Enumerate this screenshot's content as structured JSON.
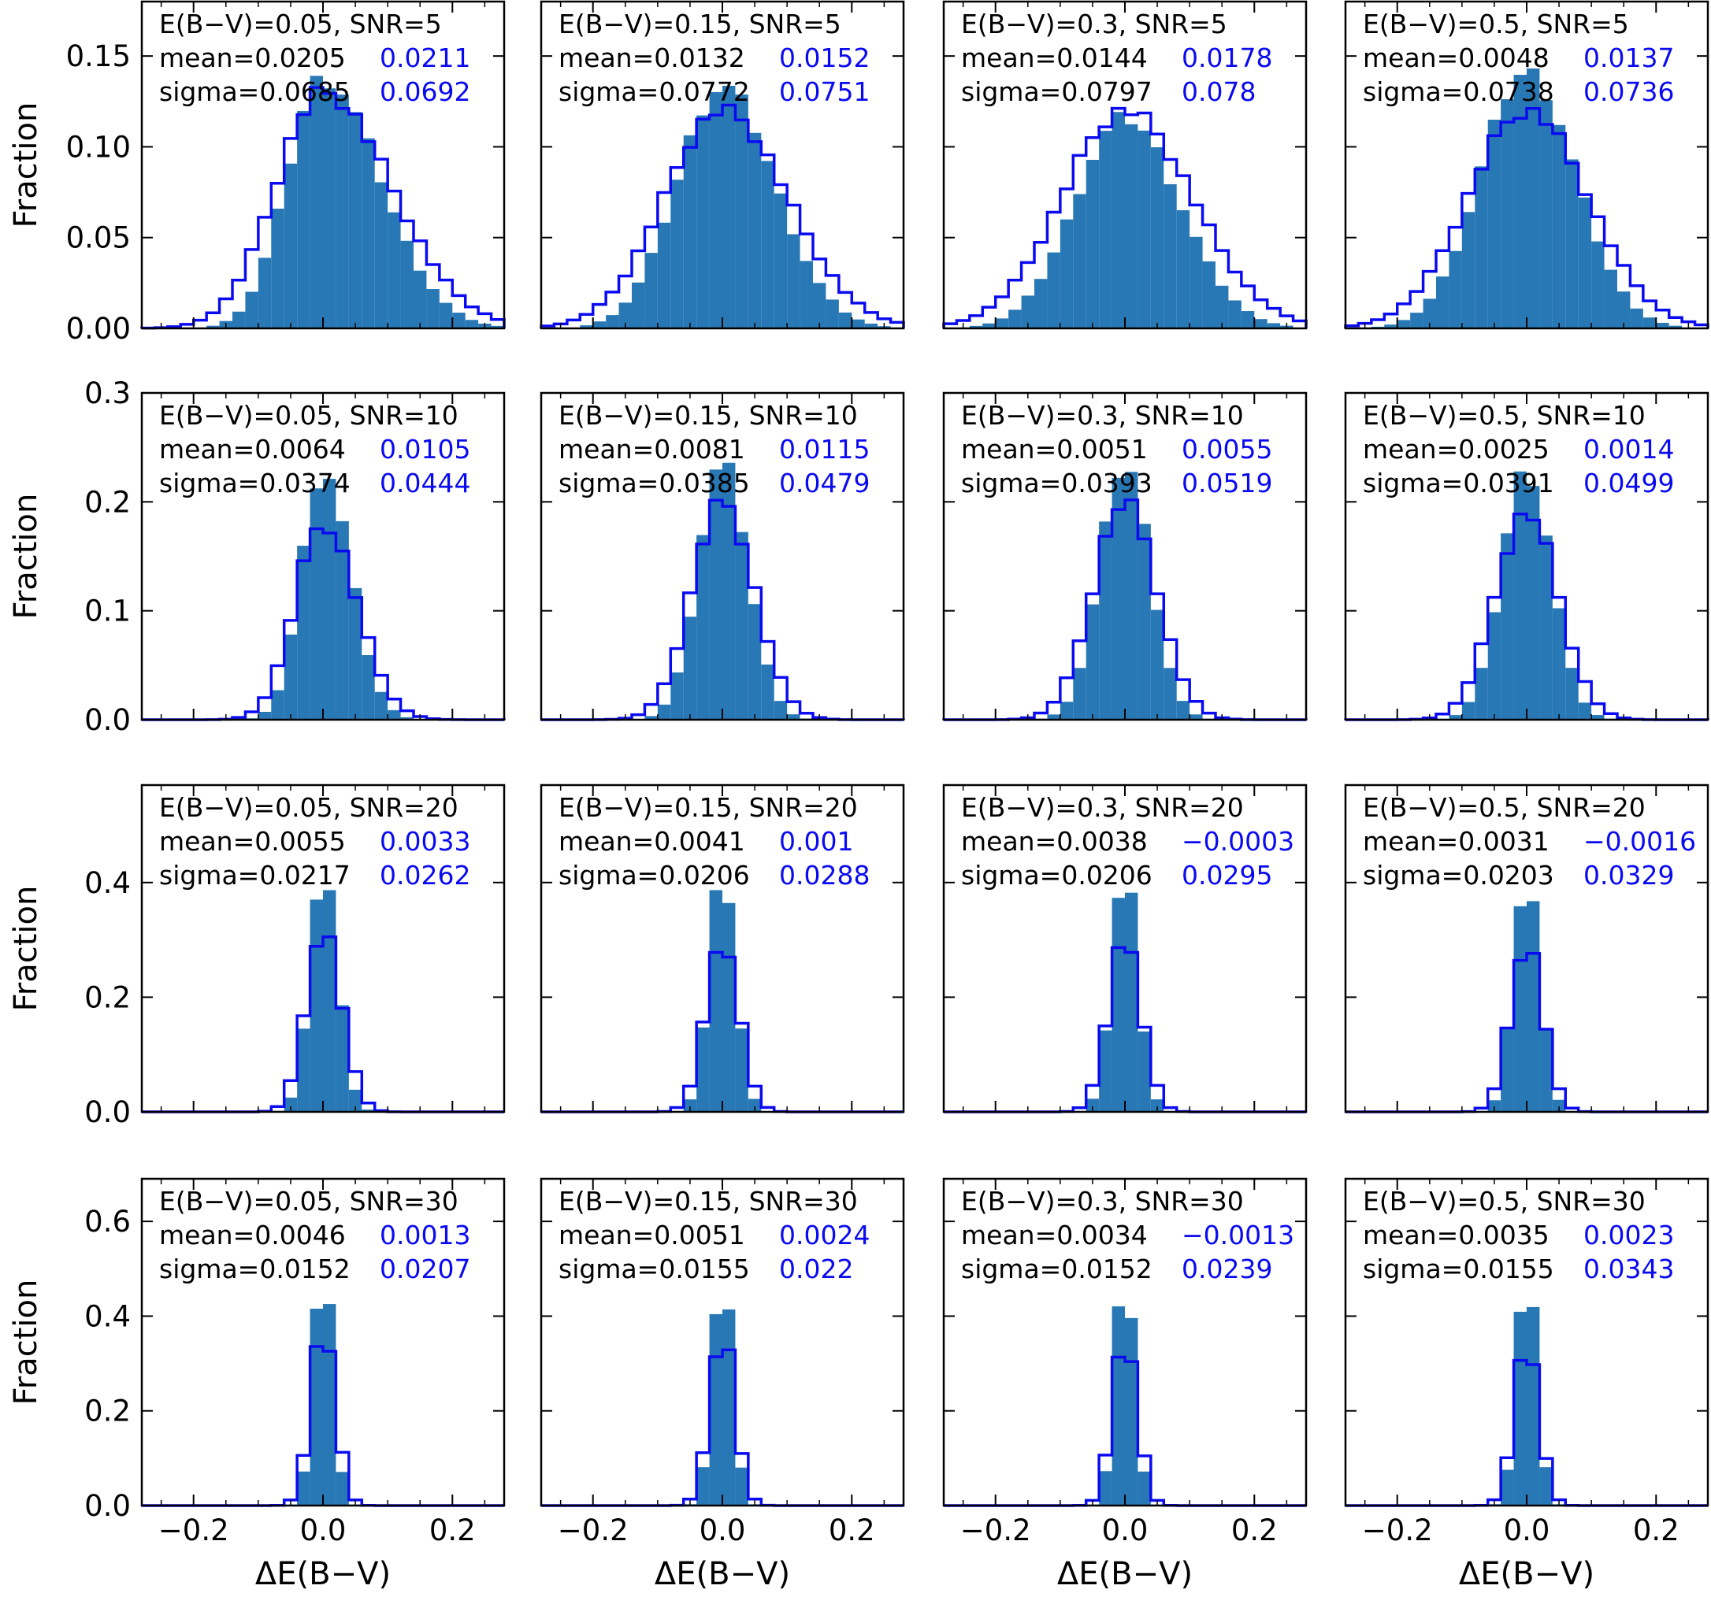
{
  "colors": {
    "filled": "#2878b5",
    "outline": "#0a0af0",
    "frame": "#000000"
  },
  "labels": {
    "xlabel": "ΔE(B−V)",
    "ylabel": "Fraction"
  },
  "xaxis": {
    "range": [
      -0.28,
      0.28
    ],
    "ticks": [
      -0.2,
      0.0,
      0.2
    ],
    "tick_labels": [
      "−0.2",
      "0.0",
      "0.2"
    ]
  },
  "rows": [
    {
      "snr_label": "SNR=5",
      "ylim": [
        0,
        0.18
      ],
      "yticks": [
        0,
        0.05,
        0.1,
        0.15
      ],
      "ytick_labels": [
        "0.00",
        "0.05",
        "0.10",
        "0.15"
      ]
    },
    {
      "snr_label": "SNR=10",
      "ylim": [
        0,
        0.3
      ],
      "yticks": [
        0,
        0.1,
        0.2,
        0.3
      ],
      "ytick_labels": [
        "0.0",
        "0.1",
        "0.2",
        "0.3"
      ]
    },
    {
      "snr_label": "SNR=20",
      "ylim": [
        0,
        0.57
      ],
      "yticks": [
        0,
        0.2,
        0.4
      ],
      "ytick_labels": [
        "0.0",
        "0.2",
        "0.4"
      ]
    },
    {
      "snr_label": "SNR=30",
      "ylim": [
        0,
        0.69
      ],
      "yticks": [
        0,
        0.2,
        0.4,
        0.6
      ],
      "ytick_labels": [
        "0.0",
        "0.2",
        "0.4",
        "0.6"
      ]
    }
  ],
  "chart_data": [
    {
      "type": "bar",
      "row": 0,
      "col": 0,
      "title": "E(B−V)=0.05,  SNR=5",
      "mean_label": "mean=0.0205",
      "mean_blue": "0.0211",
      "sigma_label": "sigma=0.0685",
      "sigma_blue": "0.0692",
      "width": 0.0682,
      "filled_scale": 0.138,
      "outline_scale": 0.13,
      "skew": 0.5
    },
    {
      "type": "bar",
      "row": 0,
      "col": 1,
      "title": "E(B−V)=0.15,  SNR=5",
      "mean_label": "mean=0.0132",
      "mean_blue": "0.0152",
      "sigma_label": "sigma=0.0772",
      "sigma_blue": "0.0751",
      "width": 0.075,
      "filled_scale": 0.133,
      "outline_scale": 0.12,
      "skew": 0.15
    },
    {
      "type": "bar",
      "row": 0,
      "col": 2,
      "title": "E(B−V)=0.3,  SNR=5",
      "mean_label": "mean=0.0144",
      "mean_blue": "0.0178",
      "sigma_label": "sigma=0.0797",
      "sigma_blue": "0.078",
      "width": 0.0798,
      "filled_scale": 0.116,
      "outline_scale": 0.12,
      "skew": 0.1
    },
    {
      "type": "bar",
      "row": 0,
      "col": 3,
      "title": "E(B−V)=0.5,  SNR=5",
      "mean_label": "mean=0.0048",
      "mean_blue": "0.0137",
      "sigma_label": "sigma=0.0738",
      "sigma_blue": "0.0736",
      "width": 0.0735,
      "filled_scale": 0.141,
      "outline_scale": 0.12,
      "skew": 0.05
    },
    {
      "type": "bar",
      "row": 1,
      "col": 0,
      "title": "E(B−V)=0.05,  SNR=10",
      "mean_label": "mean=0.0064",
      "mean_blue": "0.0105",
      "sigma_label": "sigma=0.0374",
      "sigma_blue": "0.0444",
      "width": 0.0373,
      "filled_scale": 0.23,
      "outline_scale": 0.18,
      "skew": 0.25
    },
    {
      "type": "bar",
      "row": 1,
      "col": 1,
      "title": "E(B−V)=0.15,  SNR=10",
      "mean_label": "mean=0.0081",
      "mean_blue": "0.0115",
      "sigma_label": "sigma=0.0385",
      "sigma_blue": "0.0479",
      "width": 0.0385,
      "filled_scale": 0.235,
      "outline_scale": 0.2,
      "skew": 0.05
    },
    {
      "type": "bar",
      "row": 1,
      "col": 2,
      "title": "E(B−V)=0.3,  SNR=10",
      "mean_label": "mean=0.0051",
      "mean_blue": "0.0055",
      "sigma_label": "sigma=0.0393",
      "sigma_blue": "0.0519",
      "width": 0.0393,
      "filled_scale": 0.235,
      "outline_scale": 0.2,
      "skew": 0.0
    },
    {
      "type": "bar",
      "row": 1,
      "col": 3,
      "title": "E(B−V)=0.5,  SNR=10",
      "mean_label": "mean=0.0025",
      "mean_blue": "0.0014",
      "sigma_label": "sigma=0.0391",
      "sigma_blue": "0.0499",
      "width": 0.039,
      "filled_scale": 0.23,
      "outline_scale": 0.19,
      "skew": 0.0
    },
    {
      "type": "bar",
      "row": 2,
      "col": 0,
      "title": "E(B−V)=0.05,  SNR=20",
      "mean_label": "mean=0.0055",
      "mean_blue": "0.0033",
      "sigma_label": "sigma=0.0217",
      "sigma_blue": "0.0262",
      "width": 0.0217,
      "filled_scale": 0.42,
      "outline_scale": 0.32,
      "skew": 0.1
    },
    {
      "type": "bar",
      "row": 2,
      "col": 1,
      "title": "E(B−V)=0.15,  SNR=20",
      "mean_label": "mean=0.0041",
      "mean_blue": "0.001",
      "sigma_label": "sigma=0.0206",
      "sigma_blue": "0.0288",
      "width": 0.0206,
      "filled_scale": 0.42,
      "outline_scale": 0.3,
      "skew": 0.0
    },
    {
      "type": "bar",
      "row": 2,
      "col": 2,
      "title": "E(B−V)=0.3,  SNR=20",
      "mean_label": "mean=0.0038",
      "mean_blue": "−0.0003",
      "sigma_label": "sigma=0.0206",
      "sigma_blue": "0.0295",
      "width": 0.0206,
      "filled_scale": 0.42,
      "outline_scale": 0.3,
      "skew": 0.0
    },
    {
      "type": "bar",
      "row": 2,
      "col": 3,
      "title": "E(B−V)=0.5,  SNR=20",
      "mean_label": "mean=0.0031",
      "mean_blue": "−0.0016",
      "sigma_label": "sigma=0.0203",
      "sigma_blue": "0.0329",
      "width": 0.0203,
      "filled_scale": 0.42,
      "outline_scale": 0.29,
      "skew": 0.0
    },
    {
      "type": "bar",
      "row": 3,
      "col": 0,
      "title": "E(B−V)=0.05,  SNR=30",
      "mean_label": "mean=0.0046",
      "mean_blue": "0.0013",
      "sigma_label": "sigma=0.0152",
      "sigma_blue": "0.0207",
      "width": 0.0152,
      "filled_scale": 0.51,
      "outline_scale": 0.38,
      "skew": 0.0
    },
    {
      "type": "bar",
      "row": 3,
      "col": 1,
      "title": "E(B−V)=0.15,  SNR=30",
      "mean_label": "mean=0.0051",
      "mean_blue": "0.0024",
      "sigma_label": "sigma=0.0155",
      "sigma_blue": "0.022",
      "width": 0.0155,
      "filled_scale": 0.51,
      "outline_scale": 0.37,
      "skew": 0.0
    },
    {
      "type": "bar",
      "row": 3,
      "col": 2,
      "title": "E(B−V)=0.3,  SNR=30",
      "mean_label": "mean=0.0034",
      "mean_blue": "−0.0013",
      "sigma_label": "sigma=0.0152",
      "sigma_blue": "0.0239",
      "width": 0.0152,
      "filled_scale": 0.51,
      "outline_scale": 0.36,
      "skew": 0.0
    },
    {
      "type": "bar",
      "row": 3,
      "col": 3,
      "title": "E(B−V)=0.5,  SNR=30",
      "mean_label": "mean=0.0035",
      "mean_blue": "0.0023",
      "sigma_label": "sigma=0.0155",
      "sigma_blue": "0.0343",
      "width": 0.0155,
      "filled_scale": 0.51,
      "outline_scale": 0.34,
      "skew": 0.0
    }
  ]
}
